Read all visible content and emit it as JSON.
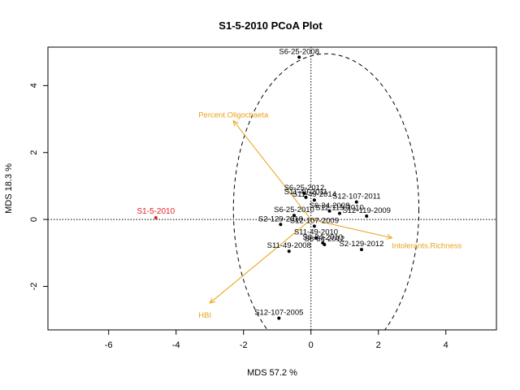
{
  "chart_data": {
    "type": "scatter",
    "title": "S1-5-2010 PCoA Plot",
    "xlabel": "MDS  57.2 %",
    "ylabel": "MDS  18.3 %",
    "xlim": [
      -7.8,
      5.5
    ],
    "ylim": [
      -3.3,
      5.15
    ],
    "x_ticks": [
      -6,
      -4,
      -2,
      0,
      2,
      4
    ],
    "y_ticks": [
      -2,
      0,
      2,
      4
    ],
    "grid": false,
    "reference_lines": {
      "x": 0,
      "y": 0,
      "style": "dotted"
    },
    "ellipse": {
      "center": [
        0.45,
        0.3
      ],
      "radius_x": 2.75,
      "radius_y": 4.65,
      "style": "dashed"
    },
    "points": [
      {
        "label": "S6-25-2008",
        "x": -0.35,
        "y": 4.85
      },
      {
        "label": "S6-25-2012",
        "x": -0.2,
        "y": 0.78
      },
      {
        "label": "S11-49-2011",
        "x": -0.15,
        "y": 0.66
      },
      {
        "label": "S11-49-2014",
        "x": 0.1,
        "y": 0.58
      },
      {
        "label": "S12-107-2011",
        "x": 1.35,
        "y": 0.52
      },
      {
        "label": "S6-34-2008",
        "x": 0.55,
        "y": 0.25
      },
      {
        "label": "S6-25-2010",
        "x": -0.5,
        "y": 0.12
      },
      {
        "label": "S12-119-2010",
        "x": 0.85,
        "y": 0.18
      },
      {
        "label": "S12-119-2009",
        "x": 1.65,
        "y": 0.1
      },
      {
        "label": "S2-129-2010",
        "x": -0.9,
        "y": -0.15
      },
      {
        "label": "S12-107-2009",
        "x": 0.1,
        "y": -0.2
      },
      {
        "label": "S11-49-2010",
        "x": 0.15,
        "y": -0.55
      },
      {
        "label": "S6-34-2010",
        "x": 0.35,
        "y": -0.7
      },
      {
        "label": "S6-34-2012",
        "x": 0.4,
        "y": -0.75
      },
      {
        "label": "S2-129-2012",
        "x": 1.5,
        "y": -0.9
      },
      {
        "label": "S11-49-2008",
        "x": -0.65,
        "y": -0.95
      },
      {
        "label": "S12-107-2005",
        "x": -0.95,
        "y": -2.95
      }
    ],
    "focus_point": {
      "label": "S1-5-2010",
      "x": -4.6,
      "y": 0.05,
      "color": "#E02020"
    },
    "vectors": [
      {
        "label": "Percent.Oligochaeta",
        "x": -2.3,
        "y": 2.95
      },
      {
        "label": "Intolerants.Richness",
        "x": 2.4,
        "y": -0.55
      },
      {
        "label": "HBI",
        "x": -3.0,
        "y": -2.5
      }
    ],
    "vector_color": "#E8A317"
  }
}
